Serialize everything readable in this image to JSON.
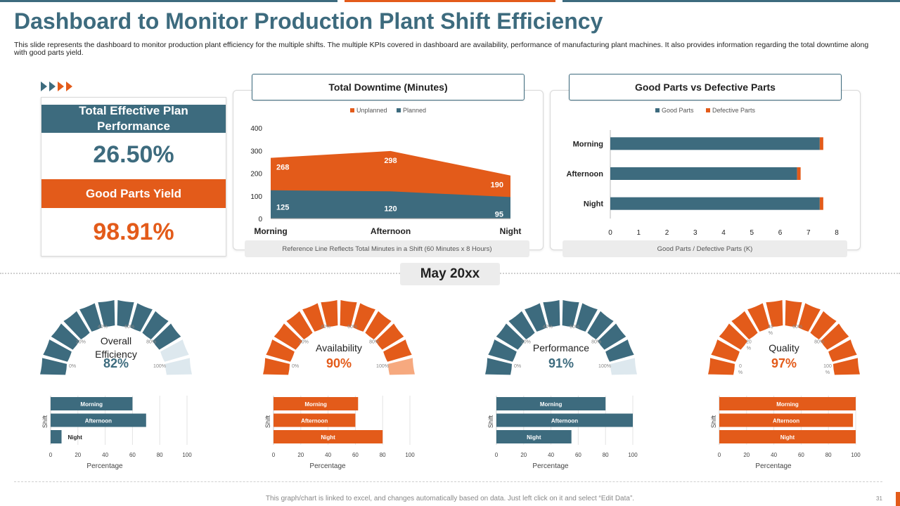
{
  "header": {
    "title": "Dashboard to Monitor Production Plant Shift Efficiency",
    "description": "This slide represents the dashboard to monitor production plant efficiency for the multiple shifts. The multiple KPIs covered in dashboard are availability, performance of manufacturing plant machines. It also provides information regarding the total downtime along with good parts yield."
  },
  "colors": {
    "teal": "#3d6b7e",
    "orange": "#e35b1a",
    "light_teal": "#dde8ee",
    "light_orange": "#f6a97f"
  },
  "kpis": {
    "plan_label": "Total Effective Plan Performance",
    "plan_value": "26.50%",
    "yield_label": "Good Parts Yield",
    "yield_value": "98.91%"
  },
  "downtime": {
    "title": "Total Downtime (Minutes)",
    "note": "Reference Line Reflects Total Minutes in a Shift (60 Minutes x 8 Hours)"
  },
  "parts": {
    "title": "Good Parts vs Defective Parts",
    "note": "Good Parts / Defective Parts (K)"
  },
  "month": "May 20xx",
  "footer": {
    "note": "This graph/chart is linked to excel, and changes automatically based on data. Just left click on it and select “Edit Data”.",
    "page": "31"
  },
  "chart_data": [
    {
      "id": "downtime",
      "type": "area",
      "title": "Total Downtime (Minutes)",
      "categories": [
        "Morning",
        "Afternoon",
        "Night"
      ],
      "series": [
        {
          "name": "Unplanned",
          "values": [
            268,
            298,
            190
          ],
          "color": "#e35b1a"
        },
        {
          "name": "Planned",
          "values": [
            125,
            120,
            95
          ],
          "color": "#3d6b7e"
        }
      ],
      "ylim": [
        0,
        400
      ],
      "yticks": [
        "0",
        "100",
        "200",
        "300",
        "400"
      ],
      "legend": "top"
    },
    {
      "id": "parts",
      "type": "bar",
      "orientation": "horizontal",
      "title": "Good Parts vs Defective Parts",
      "categories": [
        "Morning",
        "Afternoon",
        "Night"
      ],
      "series": [
        {
          "name": "Good Parts",
          "values": [
            7.4,
            6.6,
            7.4
          ],
          "color": "#3d6b7e"
        },
        {
          "name": "Defective Parts",
          "values": [
            0.1,
            0.1,
            0.1
          ],
          "color": "#e35b1a"
        }
      ],
      "xlabel": "Good Parts / Defective Parts (K)",
      "xlim": [
        0,
        8
      ],
      "xticks": [
        "0",
        "1",
        "2",
        "3",
        "4",
        "5",
        "6",
        "7",
        "8"
      ],
      "legend": "top"
    },
    {
      "id": "gauges",
      "type": "gauge",
      "items": [
        {
          "label": "Overall Efficiency",
          "value": 82,
          "value_label": "82%",
          "color": "teal",
          "ticks": [
            "0%",
            "20%",
            "40%",
            "60%",
            "80%",
            "100%"
          ]
        },
        {
          "label": "Availability",
          "value": 90,
          "value_label": "90%",
          "color": "orange",
          "ticks": [
            "0%",
            "20%",
            "40%",
            "60%",
            "80%",
            "100%"
          ]
        },
        {
          "label": "Performance",
          "value": 91,
          "value_label": "91%",
          "color": "teal",
          "ticks": [
            "0%",
            "20%",
            "40%",
            "60%",
            "80%",
            "100%"
          ]
        },
        {
          "label": "Quality",
          "value": 97,
          "value_label": "97%",
          "color": "orange",
          "ticks": [
            "0\n%",
            "20\n%",
            "40\n%",
            "60%",
            "80%",
            "100\n%"
          ]
        }
      ]
    },
    {
      "id": "shift_bars",
      "type": "bar",
      "orientation": "horizontal",
      "xlabel": "Percentage",
      "ylabel": "Shift",
      "xlim": [
        0,
        100
      ],
      "xticks": [
        "0",
        "20",
        "40",
        "60",
        "80",
        "100"
      ],
      "categories": [
        "Morning",
        "Afternoon",
        "Night"
      ],
      "charts": [
        {
          "color": "teal",
          "values": [
            60,
            70,
            8
          ]
        },
        {
          "color": "orange",
          "values": [
            62,
            60,
            80
          ]
        },
        {
          "color": "teal",
          "values": [
            80,
            100,
            55
          ]
        },
        {
          "color": "orange",
          "values": [
            100,
            98,
            100
          ]
        }
      ]
    }
  ]
}
